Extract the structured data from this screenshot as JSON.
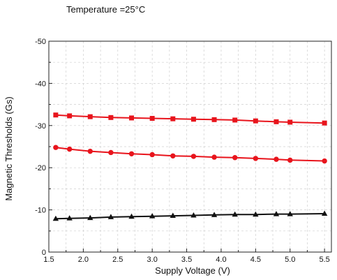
{
  "chart_data": {
    "type": "line",
    "title": "Temperature =25°C",
    "xlabel": "Supply Voltage (V)",
    "ylabel": "Magnetic Thresholds (Gs)",
    "xlim": [
      1.5,
      5.6
    ],
    "ylim": [
      0,
      -50
    ],
    "xticks": [
      "1.5",
      "2.0",
      "2.5",
      "3.0",
      "3.5",
      "4.0",
      "4.5",
      "5.0",
      "5.5"
    ],
    "yticks": [
      "0",
      "-10",
      "-20",
      "-30",
      "-40",
      "-50"
    ],
    "grid": true,
    "x": [
      1.6,
      1.8,
      2.1,
      2.4,
      2.7,
      3.0,
      3.3,
      3.6,
      3.9,
      4.2,
      4.5,
      4.8,
      5.0,
      5.5
    ],
    "series": [
      {
        "marker": "square",
        "color": "#e8141c",
        "values": [
          -32.5,
          -32.3,
          -32.1,
          -31.9,
          -31.8,
          -31.7,
          -31.6,
          -31.5,
          -31.4,
          -31.3,
          -31.1,
          -30.9,
          -30.8,
          -30.6
        ]
      },
      {
        "marker": "circle",
        "color": "#e8141c",
        "values": [
          -24.8,
          -24.4,
          -23.9,
          -23.6,
          -23.3,
          -23.1,
          -22.8,
          -22.7,
          -22.5,
          -22.4,
          -22.2,
          -22.0,
          -21.8,
          -21.6
        ]
      },
      {
        "marker": "triangle",
        "color": "#111111",
        "values": [
          -7.9,
          -8.0,
          -8.1,
          -8.3,
          -8.4,
          -8.5,
          -8.6,
          -8.7,
          -8.8,
          -8.9,
          -8.9,
          -9.0,
          -9.0,
          -9.1
        ]
      }
    ]
  }
}
